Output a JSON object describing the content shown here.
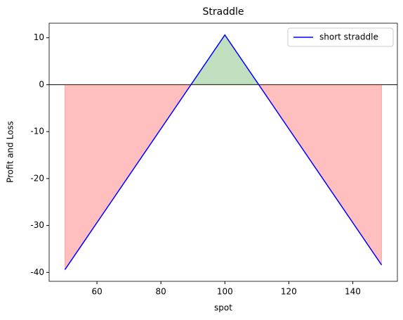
{
  "chart_data": {
    "type": "line",
    "title": "Straddle",
    "x_label": "spot",
    "y_label": "Profit and Loss",
    "x": [
      50,
      100,
      149
    ],
    "series": [
      {
        "name": "short straddle",
        "color": "#0000ff",
        "values": [
          -39.4,
          10.6,
          -38.4
        ]
      }
    ],
    "xlim": [
      45.05,
      153.95
    ],
    "xticks": [
      60,
      80,
      100,
      120,
      140
    ],
    "ylim": [
      -41.9,
      13.1
    ],
    "yticks": [
      -40,
      -30,
      -20,
      -10,
      0,
      10
    ],
    "hline": 0,
    "hline_color": "#000000",
    "fill_positive": "#008000",
    "fill_negative": "#ff0000",
    "fill_alpha": 0.25,
    "legend": "upper right",
    "grid": false
  }
}
